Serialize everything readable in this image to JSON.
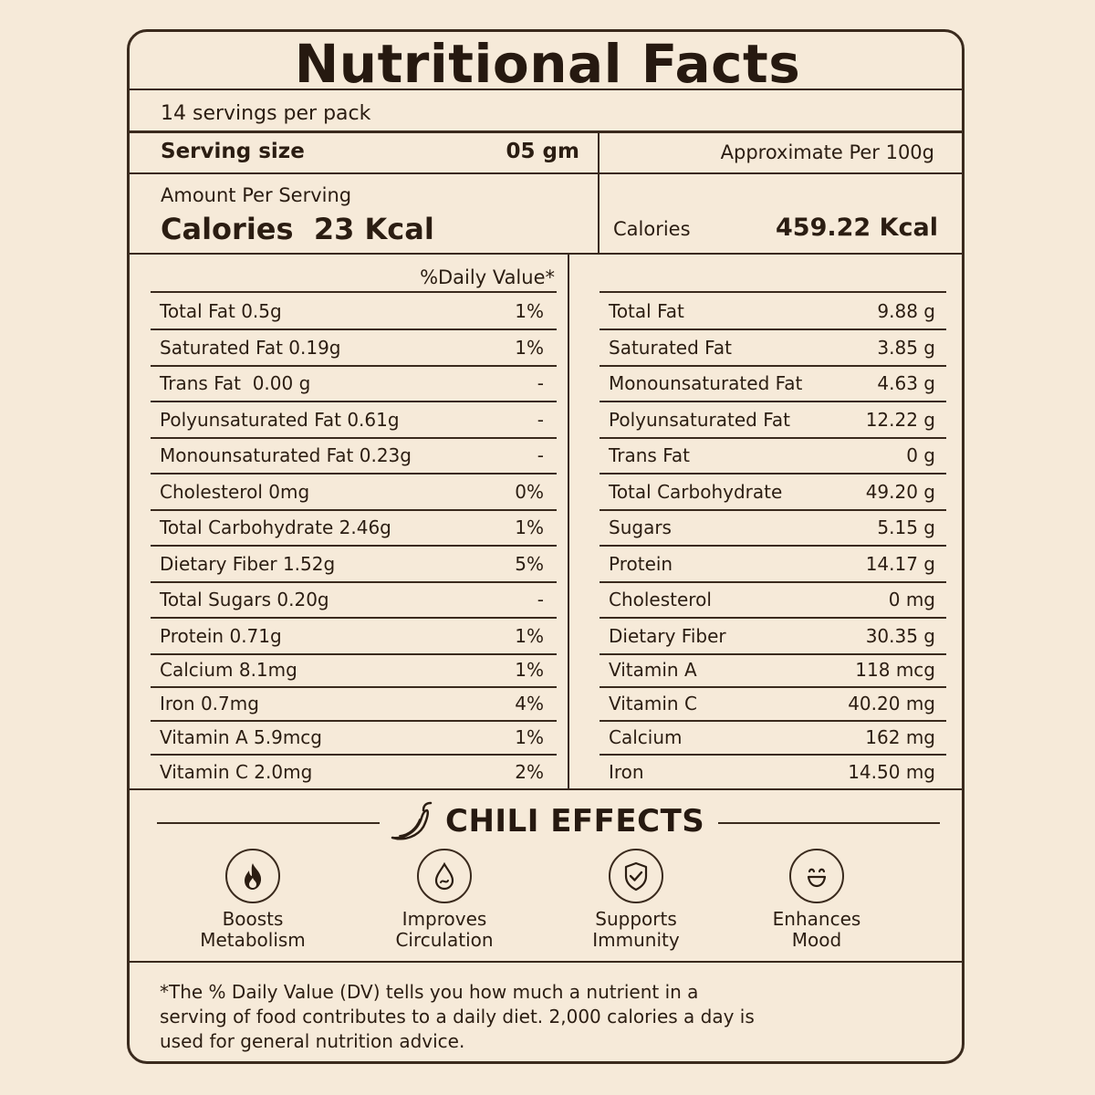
{
  "title": "Nutritional Facts",
  "servings_per_pack": "14 servings per pack",
  "serving_size_label": "Serving size",
  "serving_size_value": "05 gm",
  "approx_label": "Approximate Per 100g",
  "amount_per_serving": "Amount Per Serving",
  "calories_per_serving": "Calories  23 Kcal",
  "calories_100g_label": "Calories",
  "calories_100g_value": "459.22 Kcal",
  "daily_value_header": "%Daily Value*",
  "per_serving_rows": [
    {
      "name": "Total Fat 0.5g",
      "dv": "1%"
    },
    {
      "name": "Saturated Fat 0.19g",
      "dv": "1%"
    },
    {
      "name": "Trans Fat  0.00 g",
      "dv": "-"
    },
    {
      "name": "Polyunsaturated Fat 0.61g",
      "dv": "-"
    },
    {
      "name": "Monounsaturated Fat 0.23g",
      "dv": "-"
    },
    {
      "name": "Cholesterol 0mg",
      "dv": "0%"
    },
    {
      "name": "Total Carbohydrate 2.46g",
      "dv": "1%"
    },
    {
      "name": "Dietary Fiber 1.52g",
      "dv": "5%"
    },
    {
      "name": "Total Sugars 0.20g",
      "dv": "-"
    },
    {
      "name": "Protein 0.71g",
      "dv": "1%"
    },
    {
      "name": "Calcium 8.1mg",
      "dv": "1%"
    },
    {
      "name": "Iron 0.7mg",
      "dv": "4%"
    },
    {
      "name": "Vitamin A 5.9mcg",
      "dv": "1%"
    },
    {
      "name": "Vitamin C 2.0mg",
      "dv": "2%"
    }
  ],
  "per_100g_rows": [
    {
      "name": "Total Fat",
      "value": "9.88 g"
    },
    {
      "name": "Saturated Fat",
      "value": "3.85 g"
    },
    {
      "name": "Monounsaturated Fat",
      "value": "4.63 g"
    },
    {
      "name": "Polyunsaturated Fat",
      "value": "12.22 g"
    },
    {
      "name": "Trans Fat",
      "value": "0 g"
    },
    {
      "name": "Total Carbohydrate",
      "value": "49.20 g"
    },
    {
      "name": "Sugars",
      "value": "5.15 g"
    },
    {
      "name": "Protein",
      "value": "14.17 g"
    },
    {
      "name": "Cholesterol",
      "value": "0 mg"
    },
    {
      "name": "Dietary Fiber",
      "value": "30.35 g"
    },
    {
      "name": "Vitamin A",
      "value": "118 mcg"
    },
    {
      "name": "Vitamin C",
      "value": "40.20 mg"
    },
    {
      "name": "Calcium",
      "value": "162 mg"
    },
    {
      "name": "Iron",
      "value": "14.50 mg"
    }
  ],
  "effects_title": "CHILI EFFECTS",
  "effects": [
    {
      "label": "Boosts Metabolism",
      "icon": "flame-icon"
    },
    {
      "label": "Improves Circulation",
      "icon": "drop-icon"
    },
    {
      "label": "Supports Immunity",
      "icon": "shield-check-icon"
    },
    {
      "label": "Enhances Mood",
      "icon": "smile-icon"
    }
  ],
  "footnote": "*The % Daily Value (DV) tells you how much a nutrient in a serving of food contributes to a daily diet. 2,000 calories a day is used for general nutrition advice.",
  "colors": {
    "background": "#f6ead9",
    "ink": "#2b1d12",
    "line": "#3a2a1d"
  }
}
